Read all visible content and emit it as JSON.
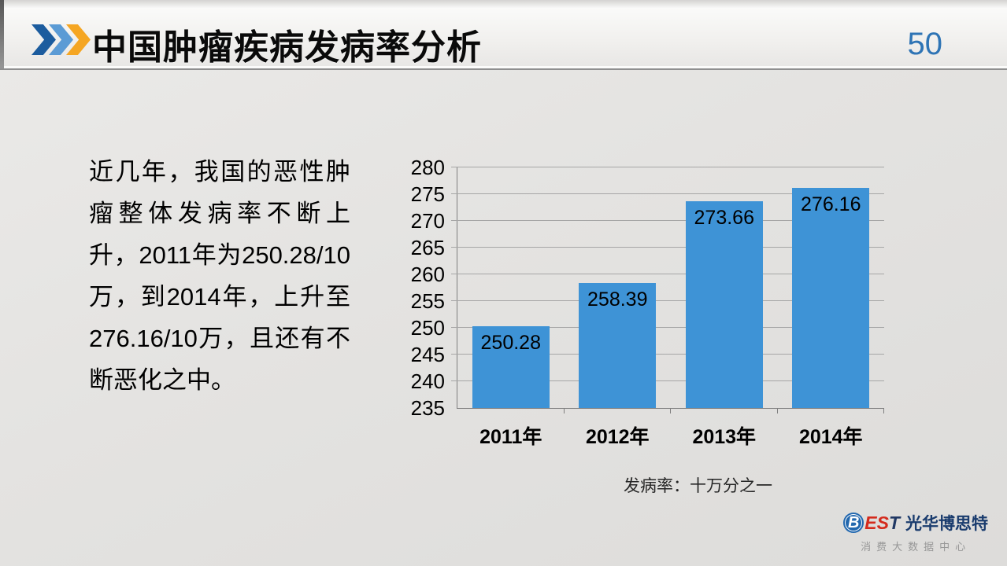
{
  "header": {
    "title": "中国肿瘤疾病发病率分析",
    "page_number": "50",
    "chevron_colors": [
      "#1C5C9E",
      "#5B9BD5",
      "#F5A623"
    ]
  },
  "paragraph": {
    "text": "近几年，我国的恶性肿瘤整体发病率不断上升，2011年为250.28/10万，到2014年，上升至276.16/10万，且还有不断恶化之中。"
  },
  "chart_data": {
    "type": "bar",
    "categories": [
      "2011年",
      "2012年",
      "2013年",
      "2014年"
    ],
    "values": [
      250.28,
      258.39,
      273.66,
      276.16
    ],
    "data_labels": [
      "250.28",
      "258.39",
      "273.66",
      "276.16"
    ],
    "ylim": [
      235,
      280
    ],
    "yticks": [
      235,
      240,
      245,
      250,
      255,
      260,
      265,
      270,
      275,
      280
    ],
    "grid": true,
    "legend": "none",
    "bar_color": "#3E93D6",
    "grid_color": "#A6A6A6",
    "axis_color": "#7F7F7F",
    "caption": "发病率：十万分之一"
  },
  "footer": {
    "logo_b": "B",
    "logo_es": "ES",
    "logo_t": "T",
    "company_name": "光华博思特",
    "subtitle": "消费大数据中心"
  }
}
